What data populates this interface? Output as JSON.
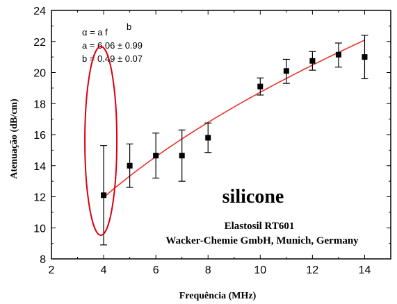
{
  "chart_data": {
    "type": "scatter",
    "title": "",
    "xlabel": "Frequência (MHz)",
    "ylabel": "Atenuação (dB/cm)",
    "xlim": [
      2,
      15
    ],
    "ylim": [
      8,
      24
    ],
    "x_ticks": [
      2,
      4,
      6,
      8,
      10,
      12,
      14
    ],
    "y_ticks": [
      8,
      10,
      12,
      14,
      16,
      18,
      20,
      22,
      24
    ],
    "grid": false,
    "legend": "none",
    "series": [
      {
        "marker": "square",
        "color": "#000000",
        "x": [
          4,
          5,
          6,
          7,
          8,
          10,
          11,
          12,
          13,
          14
        ],
        "y": [
          12.1,
          14.0,
          14.65,
          14.65,
          15.8,
          19.1,
          20.1,
          20.75,
          21.15,
          21.0
        ],
        "yerr_low": [
          8.9,
          12.6,
          13.2,
          13.0,
          14.85,
          18.55,
          19.3,
          20.15,
          20.35,
          19.6
        ],
        "yerr_high": [
          15.3,
          15.4,
          16.1,
          16.3,
          16.75,
          19.65,
          20.85,
          21.35,
          21.9,
          22.4
        ]
      }
    ],
    "fit": {
      "color": "#e8342a",
      "x_range": [
        4,
        14
      ],
      "a": 6.06,
      "b": 0.49,
      "lines": [
        "α = a f",
        "b",
        "a = 6.06 ± 0.99",
        "b = 0.49 ± 0.07"
      ]
    },
    "annotations": {
      "material": "silicone",
      "product": "Elastosil RT601",
      "manufacturer": "Wacker-Chemie GmbH, Munich, Germany",
      "highlight_color": "#d9000d",
      "highlight_x": 4
    }
  }
}
